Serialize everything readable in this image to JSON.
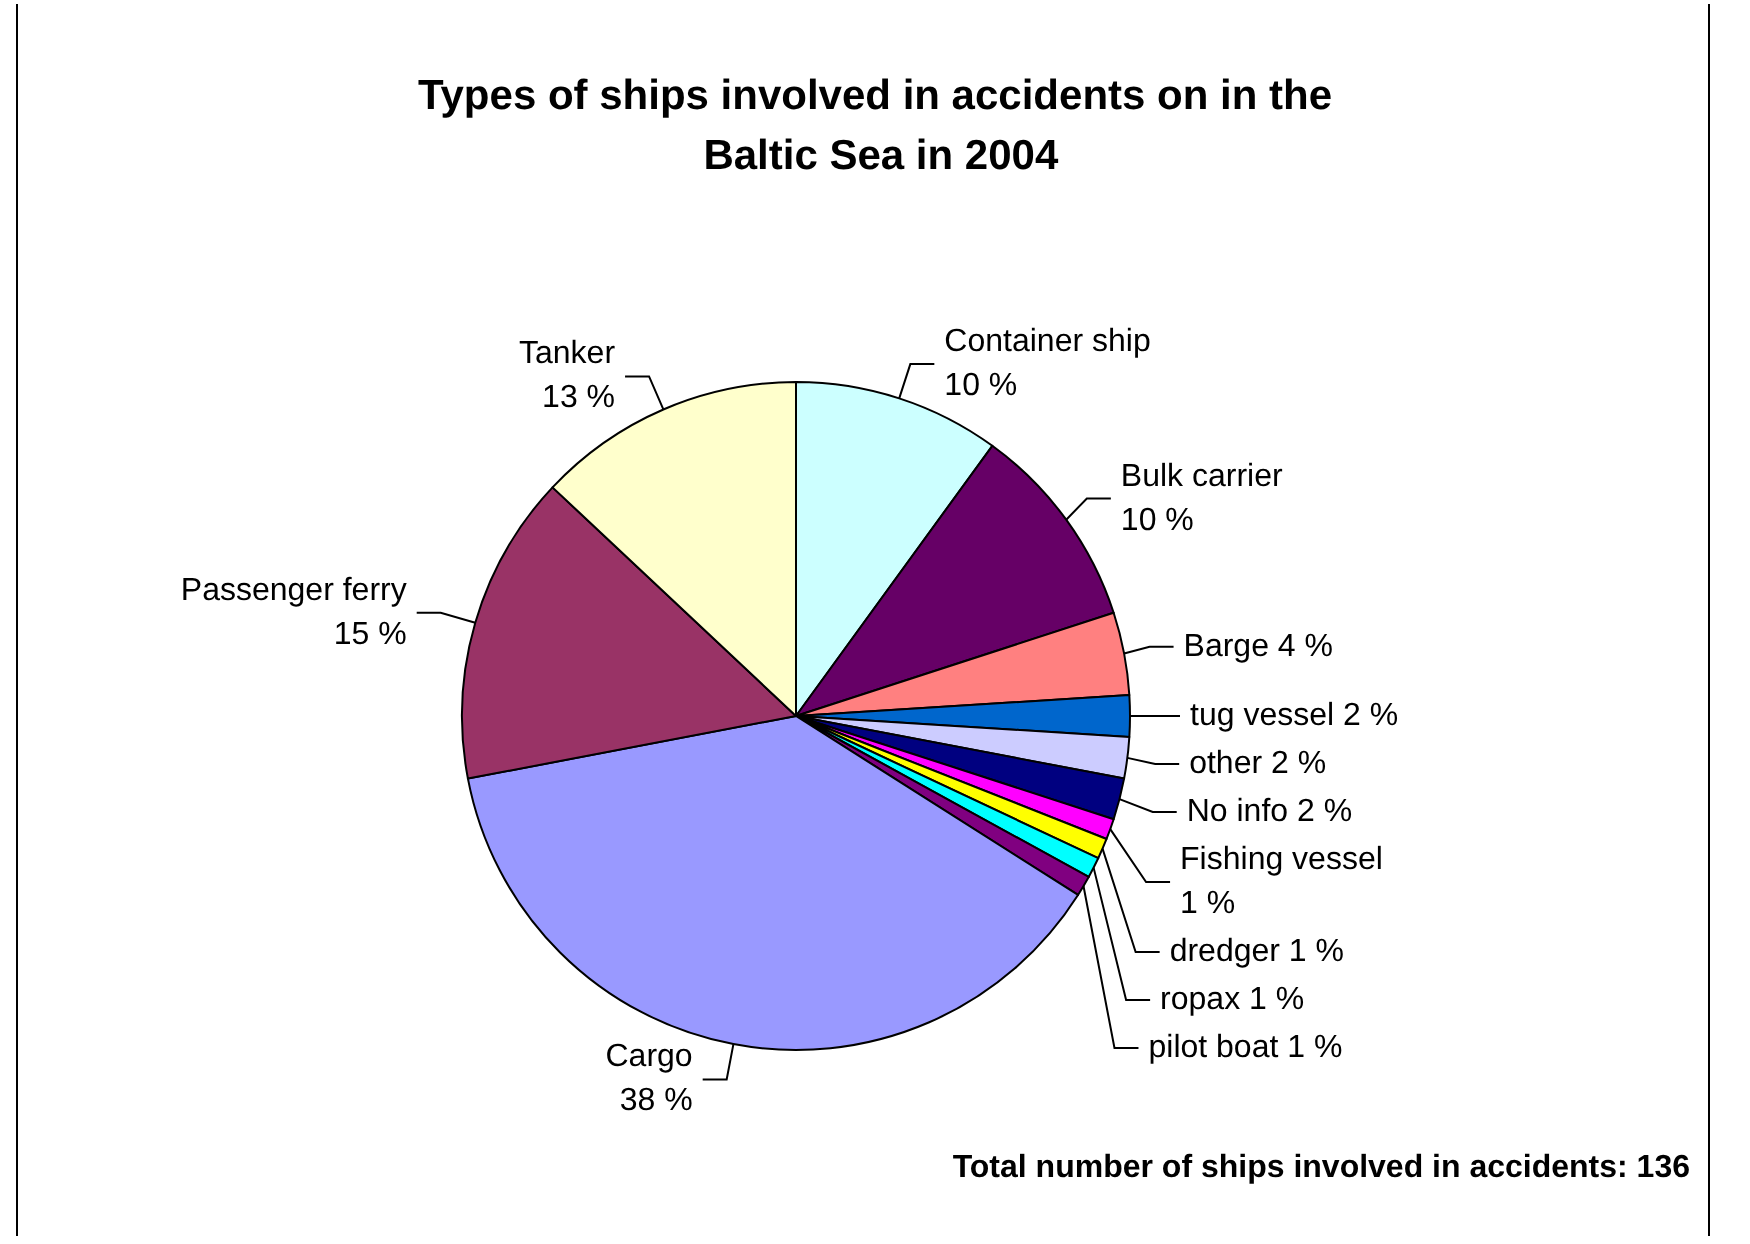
{
  "chart_data": {
    "type": "pie",
    "title": "Types of ships involved in accidents on in the Baltic Sea in 2004",
    "categories": [
      "Container ship",
      "Bulk carrier",
      "Barge",
      "tug vessel",
      "other",
      "No info",
      "Fishing vessel",
      "dredger",
      "ropax",
      "pilot boat",
      "Cargo",
      "Passenger ferry",
      "Tanker"
    ],
    "values": [
      10,
      10,
      4,
      2,
      2,
      2,
      1,
      1,
      1,
      1,
      38,
      15,
      13
    ],
    "value_labels": [
      "10 %",
      "10 %",
      "4 %",
      "2 %",
      "2 %",
      "2 %",
      "1 %",
      "1 %",
      "1 %",
      "1 %",
      "38 %",
      "15 %",
      "13 %"
    ],
    "colors": [
      "#ccffff",
      "#660066",
      "#ff8080",
      "#0066cc",
      "#ccccff",
      "#000080",
      "#ff00ff",
      "#ffff00",
      "#00ffff",
      "#800080",
      "#9999ff",
      "#993366",
      "#ffffcc"
    ],
    "annotations": [
      "Total number of ships involved in accidents: 136"
    ],
    "legend": false
  }
}
